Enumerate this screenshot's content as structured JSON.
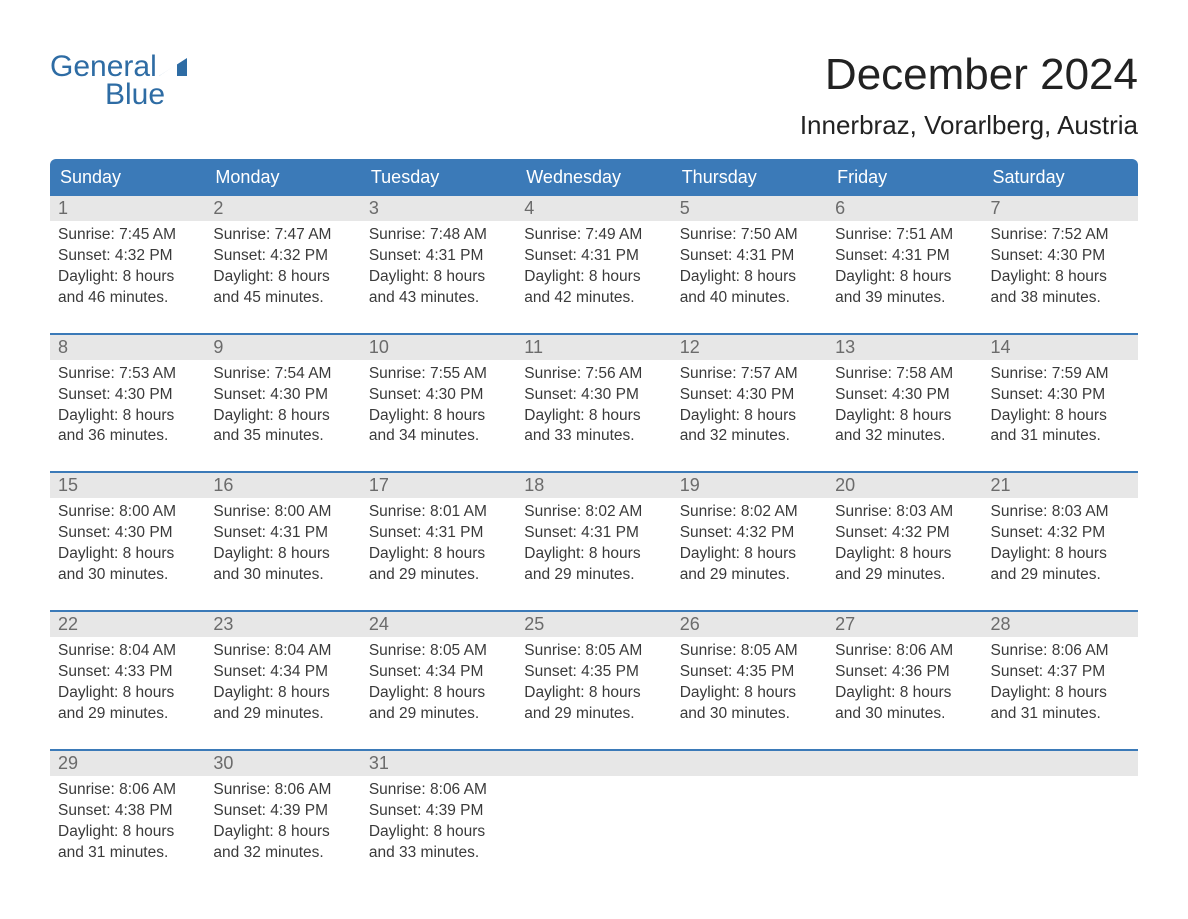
{
  "colors": {
    "brand": "#2e6ca4",
    "header_bg": "#3b7ab8",
    "header_text": "#ffffff",
    "daynum_bg": "#e7e7e7",
    "daynum_text": "#6b6b6b",
    "body_text": "#3a3a3a",
    "week_border": "#3b7ab8",
    "page_bg": "#ffffff"
  },
  "typography": {
    "month_fontsize": 44,
    "location_fontsize": 26,
    "weekday_fontsize": 18,
    "daynum_fontsize": 18,
    "body_fontsize": 15.5,
    "logo_fontsize": 30,
    "font_family": "Arial"
  },
  "logo": {
    "line1": "General",
    "line2": "Blue",
    "icon": "triangle-icon"
  },
  "title": {
    "month": "December 2024",
    "location": "Innerbraz, Vorarlberg, Austria"
  },
  "weekdays": [
    "Sunday",
    "Monday",
    "Tuesday",
    "Wednesday",
    "Thursday",
    "Friday",
    "Saturday"
  ],
  "calendar": {
    "type": "calendar",
    "columns": 7,
    "rows": 5,
    "weeks": [
      [
        {
          "num": "1",
          "sunrise": "Sunrise: 7:45 AM",
          "sunset": "Sunset: 4:32 PM",
          "d1": "Daylight: 8 hours",
          "d2": "and 46 minutes."
        },
        {
          "num": "2",
          "sunrise": "Sunrise: 7:47 AM",
          "sunset": "Sunset: 4:32 PM",
          "d1": "Daylight: 8 hours",
          "d2": "and 45 minutes."
        },
        {
          "num": "3",
          "sunrise": "Sunrise: 7:48 AM",
          "sunset": "Sunset: 4:31 PM",
          "d1": "Daylight: 8 hours",
          "d2": "and 43 minutes."
        },
        {
          "num": "4",
          "sunrise": "Sunrise: 7:49 AM",
          "sunset": "Sunset: 4:31 PM",
          "d1": "Daylight: 8 hours",
          "d2": "and 42 minutes."
        },
        {
          "num": "5",
          "sunrise": "Sunrise: 7:50 AM",
          "sunset": "Sunset: 4:31 PM",
          "d1": "Daylight: 8 hours",
          "d2": "and 40 minutes."
        },
        {
          "num": "6",
          "sunrise": "Sunrise: 7:51 AM",
          "sunset": "Sunset: 4:31 PM",
          "d1": "Daylight: 8 hours",
          "d2": "and 39 minutes."
        },
        {
          "num": "7",
          "sunrise": "Sunrise: 7:52 AM",
          "sunset": "Sunset: 4:30 PM",
          "d1": "Daylight: 8 hours",
          "d2": "and 38 minutes."
        }
      ],
      [
        {
          "num": "8",
          "sunrise": "Sunrise: 7:53 AM",
          "sunset": "Sunset: 4:30 PM",
          "d1": "Daylight: 8 hours",
          "d2": "and 36 minutes."
        },
        {
          "num": "9",
          "sunrise": "Sunrise: 7:54 AM",
          "sunset": "Sunset: 4:30 PM",
          "d1": "Daylight: 8 hours",
          "d2": "and 35 minutes."
        },
        {
          "num": "10",
          "sunrise": "Sunrise: 7:55 AM",
          "sunset": "Sunset: 4:30 PM",
          "d1": "Daylight: 8 hours",
          "d2": "and 34 minutes."
        },
        {
          "num": "11",
          "sunrise": "Sunrise: 7:56 AM",
          "sunset": "Sunset: 4:30 PM",
          "d1": "Daylight: 8 hours",
          "d2": "and 33 minutes."
        },
        {
          "num": "12",
          "sunrise": "Sunrise: 7:57 AM",
          "sunset": "Sunset: 4:30 PM",
          "d1": "Daylight: 8 hours",
          "d2": "and 32 minutes."
        },
        {
          "num": "13",
          "sunrise": "Sunrise: 7:58 AM",
          "sunset": "Sunset: 4:30 PM",
          "d1": "Daylight: 8 hours",
          "d2": "and 32 minutes."
        },
        {
          "num": "14",
          "sunrise": "Sunrise: 7:59 AM",
          "sunset": "Sunset: 4:30 PM",
          "d1": "Daylight: 8 hours",
          "d2": "and 31 minutes."
        }
      ],
      [
        {
          "num": "15",
          "sunrise": "Sunrise: 8:00 AM",
          "sunset": "Sunset: 4:30 PM",
          "d1": "Daylight: 8 hours",
          "d2": "and 30 minutes."
        },
        {
          "num": "16",
          "sunrise": "Sunrise: 8:00 AM",
          "sunset": "Sunset: 4:31 PM",
          "d1": "Daylight: 8 hours",
          "d2": "and 30 minutes."
        },
        {
          "num": "17",
          "sunrise": "Sunrise: 8:01 AM",
          "sunset": "Sunset: 4:31 PM",
          "d1": "Daylight: 8 hours",
          "d2": "and 29 minutes."
        },
        {
          "num": "18",
          "sunrise": "Sunrise: 8:02 AM",
          "sunset": "Sunset: 4:31 PM",
          "d1": "Daylight: 8 hours",
          "d2": "and 29 minutes."
        },
        {
          "num": "19",
          "sunrise": "Sunrise: 8:02 AM",
          "sunset": "Sunset: 4:32 PM",
          "d1": "Daylight: 8 hours",
          "d2": "and 29 minutes."
        },
        {
          "num": "20",
          "sunrise": "Sunrise: 8:03 AM",
          "sunset": "Sunset: 4:32 PM",
          "d1": "Daylight: 8 hours",
          "d2": "and 29 minutes."
        },
        {
          "num": "21",
          "sunrise": "Sunrise: 8:03 AM",
          "sunset": "Sunset: 4:32 PM",
          "d1": "Daylight: 8 hours",
          "d2": "and 29 minutes."
        }
      ],
      [
        {
          "num": "22",
          "sunrise": "Sunrise: 8:04 AM",
          "sunset": "Sunset: 4:33 PM",
          "d1": "Daylight: 8 hours",
          "d2": "and 29 minutes."
        },
        {
          "num": "23",
          "sunrise": "Sunrise: 8:04 AM",
          "sunset": "Sunset: 4:34 PM",
          "d1": "Daylight: 8 hours",
          "d2": "and 29 minutes."
        },
        {
          "num": "24",
          "sunrise": "Sunrise: 8:05 AM",
          "sunset": "Sunset: 4:34 PM",
          "d1": "Daylight: 8 hours",
          "d2": "and 29 minutes."
        },
        {
          "num": "25",
          "sunrise": "Sunrise: 8:05 AM",
          "sunset": "Sunset: 4:35 PM",
          "d1": "Daylight: 8 hours",
          "d2": "and 29 minutes."
        },
        {
          "num": "26",
          "sunrise": "Sunrise: 8:05 AM",
          "sunset": "Sunset: 4:35 PM",
          "d1": "Daylight: 8 hours",
          "d2": "and 30 minutes."
        },
        {
          "num": "27",
          "sunrise": "Sunrise: 8:06 AM",
          "sunset": "Sunset: 4:36 PM",
          "d1": "Daylight: 8 hours",
          "d2": "and 30 minutes."
        },
        {
          "num": "28",
          "sunrise": "Sunrise: 8:06 AM",
          "sunset": "Sunset: 4:37 PM",
          "d1": "Daylight: 8 hours",
          "d2": "and 31 minutes."
        }
      ],
      [
        {
          "num": "29",
          "sunrise": "Sunrise: 8:06 AM",
          "sunset": "Sunset: 4:38 PM",
          "d1": "Daylight: 8 hours",
          "d2": "and 31 minutes."
        },
        {
          "num": "30",
          "sunrise": "Sunrise: 8:06 AM",
          "sunset": "Sunset: 4:39 PM",
          "d1": "Daylight: 8 hours",
          "d2": "and 32 minutes."
        },
        {
          "num": "31",
          "sunrise": "Sunrise: 8:06 AM",
          "sunset": "Sunset: 4:39 PM",
          "d1": "Daylight: 8 hours",
          "d2": "and 33 minutes."
        },
        {
          "empty": true
        },
        {
          "empty": true
        },
        {
          "empty": true
        },
        {
          "empty": true
        }
      ]
    ]
  }
}
